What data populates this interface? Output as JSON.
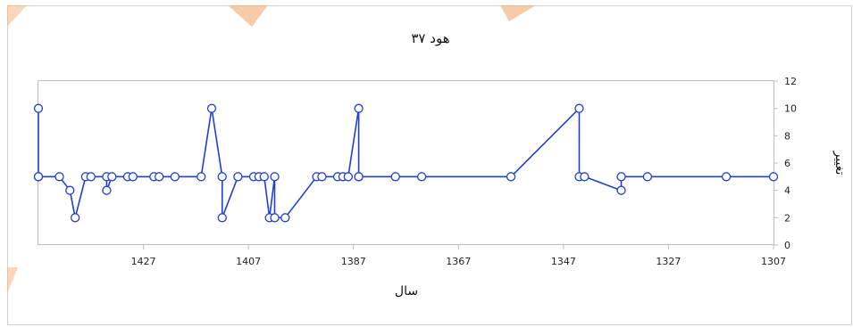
{
  "chart_data": {
    "type": "line",
    "title": "هود ۳۷",
    "xlabel": "سال",
    "ylabel": "تغییر",
    "x_reversed": true,
    "xlim": [
      1447,
      1307
    ],
    "ylim": [
      0,
      12
    ],
    "x_ticks": [
      1427,
      1407,
      1387,
      1367,
      1347,
      1327,
      1307
    ],
    "y_ticks": [
      0,
      2,
      4,
      6,
      8,
      10,
      12
    ],
    "grid": false,
    "series_color": "#1f3fd6",
    "series": [
      {
        "x": [
          1447,
          1447,
          1447,
          1443,
          1441,
          1440,
          1438,
          1437,
          1434,
          1434,
          1433,
          1430,
          1429,
          1425,
          1424,
          1421,
          1416,
          1414,
          1412,
          1412,
          1409,
          1406,
          1405,
          1404,
          1403,
          1402,
          1402,
          1400,
          1394,
          1393,
          1390,
          1389,
          1388,
          1386,
          1386,
          1386,
          1379,
          1374,
          1357,
          1344,
          1344,
          1343,
          1336,
          1336,
          1331,
          1316,
          1307
        ],
        "y": [
          5,
          10,
          5,
          5,
          4,
          2,
          5,
          5,
          5,
          4,
          5,
          5,
          5,
          5,
          5,
          5,
          5,
          10,
          5,
          2,
          5,
          5,
          5,
          5,
          2,
          5,
          2,
          2,
          5,
          5,
          5,
          5,
          5,
          10,
          5,
          5,
          5,
          5,
          5,
          10,
          5,
          5,
          4,
          5,
          5,
          5,
          5
        ]
      }
    ]
  }
}
